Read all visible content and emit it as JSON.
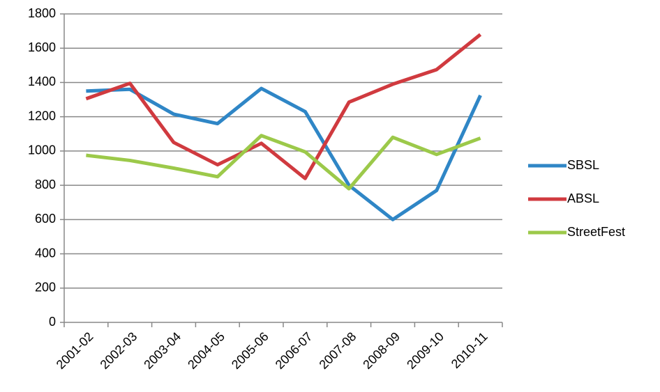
{
  "chart_data": {
    "type": "line",
    "categories": [
      "2001-02",
      "2002-03",
      "2003-04",
      "2004-05",
      "2005-06",
      "2006-07",
      "2007-08",
      "2008-09",
      "2009-10",
      "2010-11"
    ],
    "series": [
      {
        "name": "SBSL",
        "color": "#2f86c6",
        "values": [
          1350,
          1360,
          1215,
          1160,
          1365,
          1230,
          800,
          600,
          770,
          1325
        ]
      },
      {
        "name": "ABSL",
        "color": "#d03a3f",
        "values": [
          1305,
          1395,
          1050,
          920,
          1045,
          840,
          1285,
          1390,
          1475,
          1680
        ]
      },
      {
        "name": "StreetFest",
        "color": "#9cc94a",
        "values": [
          975,
          945,
          900,
          850,
          1090,
          995,
          780,
          1080,
          980,
          1075
        ]
      }
    ],
    "ylim": [
      0,
      1800
    ],
    "yticks": [
      0,
      200,
      400,
      600,
      800,
      1000,
      1200,
      1400,
      1600,
      1800
    ],
    "grid": true,
    "legend": "right"
  }
}
